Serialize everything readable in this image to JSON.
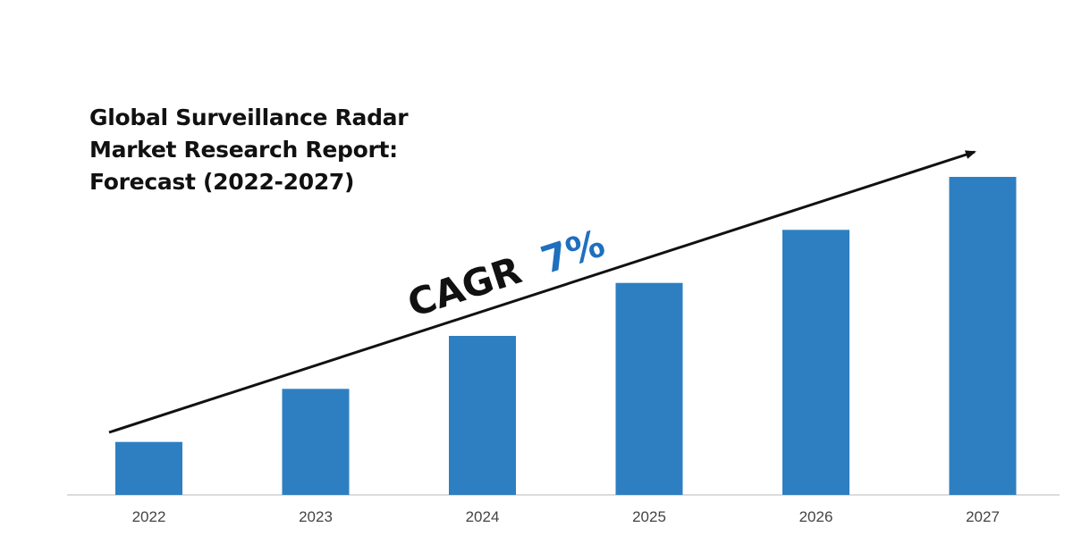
{
  "title_lines": [
    "Global Surveillance Radar",
    "Market Research Report:",
    "Forecast (2022-2027)"
  ],
  "cagr": {
    "label": "CAGR",
    "value": "7%",
    "label_color": "#111111",
    "value_color": "#1f6fbf"
  },
  "colors": {
    "bar": "#2e7fc1",
    "axis": "#d0d0d0",
    "arrow": "#111111"
  },
  "chart_data": {
    "type": "bar",
    "title": "Global Surveillance Radar Market Research Report: Forecast (2022-2027)",
    "categories": [
      "2022",
      "2023",
      "2024",
      "2025",
      "2026",
      "2027"
    ],
    "values": [
      1.0,
      2.0,
      3.0,
      4.0,
      5.0,
      6.0
    ],
    "xlabel": "",
    "ylabel": "",
    "ylim": [
      0,
      6.0
    ],
    "grid": false,
    "legend": "none",
    "annotations": [
      "CAGR 7%"
    ]
  }
}
